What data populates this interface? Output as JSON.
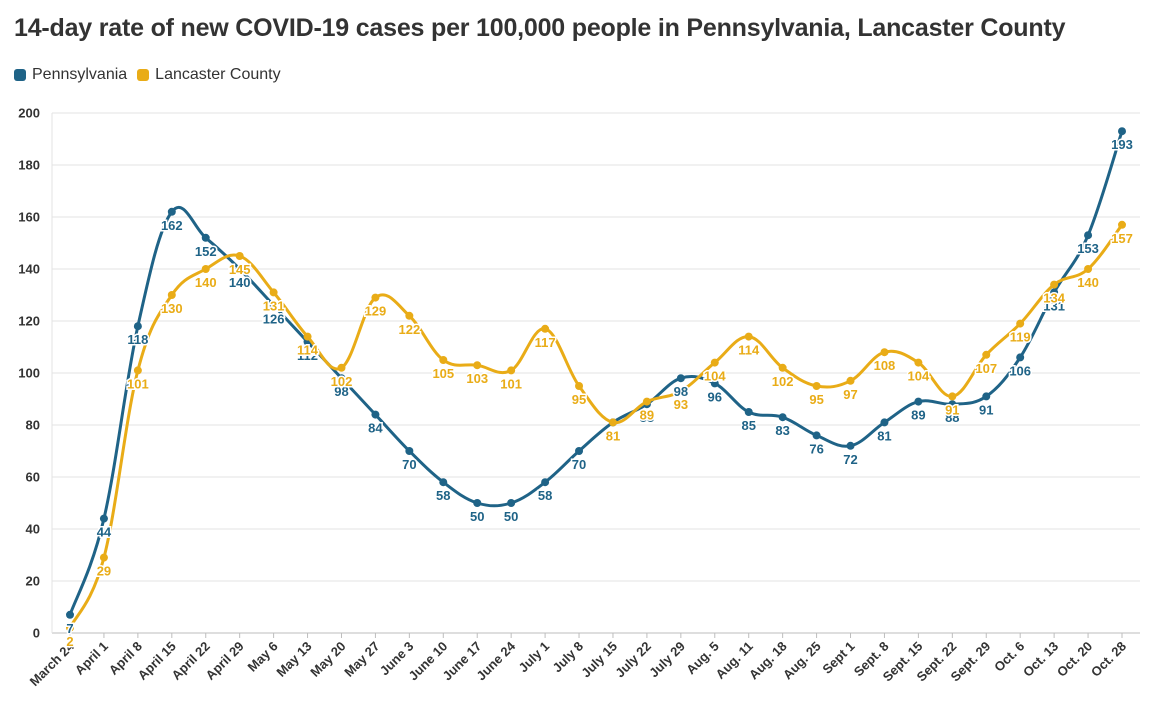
{
  "chart_data": {
    "type": "line",
    "title": "14-day rate of new COVID-19 cases per 100,000 people in Pennsylvania, Lancaster County",
    "xlabel": "",
    "ylabel": "",
    "ylim": [
      0,
      200
    ],
    "yticks": [
      0,
      20,
      40,
      60,
      80,
      100,
      120,
      140,
      160,
      180,
      200
    ],
    "grid": true,
    "legend_position": "top-left",
    "categories": [
      "March 24",
      "April 1",
      "April 8",
      "April 15",
      "April 22",
      "April 29",
      "May 6",
      "May 13",
      "May 20",
      "May 27",
      "June 3",
      "June 10",
      "June 17",
      "June 24",
      "July 1",
      "July 8",
      "July 15",
      "July 22",
      "July 29",
      "Aug. 5",
      "Aug. 11",
      "Aug. 18",
      "Aug. 25",
      "Sept 1",
      "Sept. 8",
      "Sept. 15",
      "Sept. 22",
      "Sept. 29",
      "Oct. 6",
      "Oct. 13",
      "Oct. 20",
      "Oct. 28"
    ],
    "series": [
      {
        "name": "Pennsylvania",
        "color": "#1f6387",
        "values": [
          7,
          44,
          118,
          162,
          152,
          140,
          126,
          112,
          98,
          84,
          70,
          58,
          50,
          50,
          58,
          70,
          81,
          88,
          98,
          96,
          85,
          83,
          76,
          72,
          81,
          89,
          88,
          91,
          106,
          131,
          153,
          193
        ]
      },
      {
        "name": "Lancaster County",
        "color": "#e9ac17",
        "values": [
          2,
          29,
          101,
          130,
          140,
          145,
          131,
          114,
          102,
          129,
          122,
          105,
          103,
          101,
          117,
          95,
          81,
          89,
          93,
          104,
          114,
          102,
          95,
          97,
          108,
          104,
          91,
          107,
          119,
          134,
          140,
          157
        ]
      }
    ]
  }
}
